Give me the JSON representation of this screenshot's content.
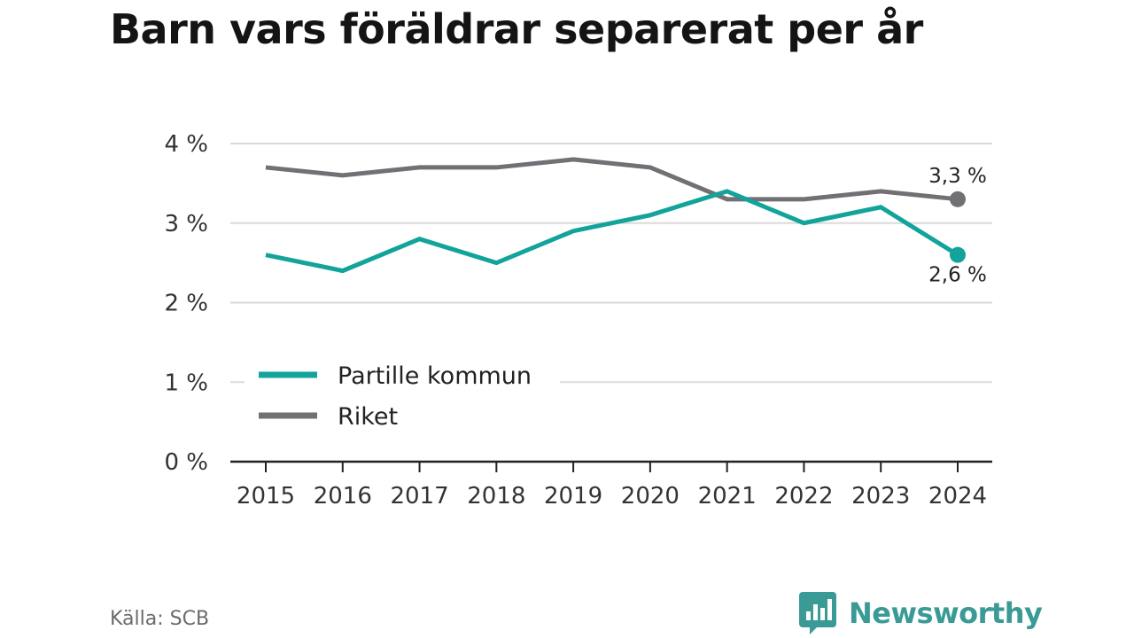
{
  "title": "Barn vars föräldrar separerat per år",
  "source": "Källa: SCB",
  "brand": {
    "name": "Newsworthy",
    "icon": "bar-chart-bubble-icon",
    "color": "#3a9a96"
  },
  "chart_data": {
    "type": "line",
    "title": "Barn vars föräldrar separerat per år",
    "categories": [
      "2015",
      "2016",
      "2017",
      "2018",
      "2019",
      "2020",
      "2021",
      "2022",
      "2023",
      "2024"
    ],
    "ylim": [
      0,
      4
    ],
    "yticks": [
      {
        "value": 0,
        "label": "0 %"
      },
      {
        "value": 1,
        "label": "1 %"
      },
      {
        "value": 2,
        "label": "2 %"
      },
      {
        "value": 3,
        "label": "3 %"
      },
      {
        "value": 4,
        "label": "4 %"
      }
    ],
    "grid": true,
    "legend_position": "bottom-left",
    "series": [
      {
        "name": "Partille kommun",
        "color": "#12a39a",
        "values": [
          2.6,
          2.4,
          2.8,
          2.5,
          2.9,
          3.1,
          3.4,
          3.0,
          3.2,
          2.6
        ],
        "end_label": "2,6 %",
        "end_label_position": "below"
      },
      {
        "name": "Riket",
        "color": "#707075",
        "values": [
          3.7,
          3.6,
          3.7,
          3.7,
          3.8,
          3.7,
          3.3,
          3.3,
          3.4,
          3.3
        ],
        "end_label": "3,3 %",
        "end_label_position": "above"
      }
    ]
  }
}
